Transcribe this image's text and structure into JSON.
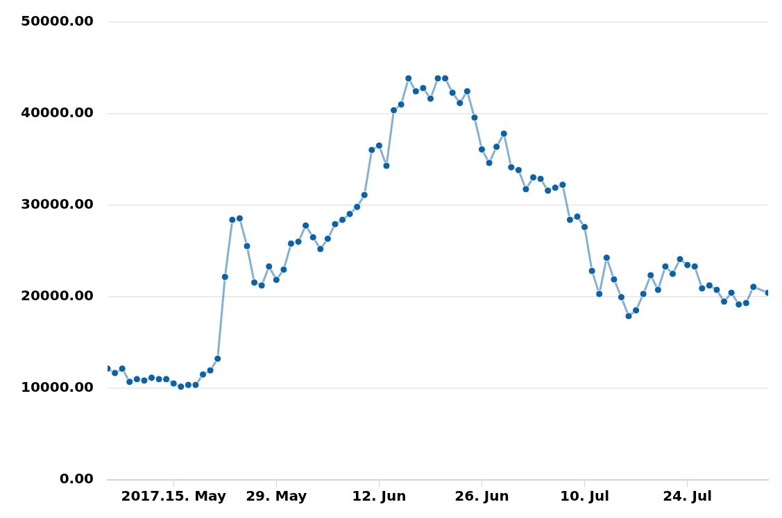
{
  "chart_data": {
    "type": "line",
    "x": [
      "2017-05-06",
      "2017-05-07",
      "2017-05-08",
      "2017-05-09",
      "2017-05-10",
      "2017-05-11",
      "2017-05-12",
      "2017-05-13",
      "2017-05-14",
      "2017-05-15",
      "2017-05-16",
      "2017-05-17",
      "2017-05-18",
      "2017-05-19",
      "2017-05-20",
      "2017-05-21",
      "2017-05-22",
      "2017-05-23",
      "2017-05-24",
      "2017-05-25",
      "2017-05-26",
      "2017-05-27",
      "2017-05-28",
      "2017-05-29",
      "2017-05-30",
      "2017-05-31",
      "2017-06-01",
      "2017-06-02",
      "2017-06-03",
      "2017-06-04",
      "2017-06-05",
      "2017-06-06",
      "2017-06-07",
      "2017-06-08",
      "2017-06-09",
      "2017-06-10",
      "2017-06-11",
      "2017-06-12",
      "2017-06-13",
      "2017-06-14",
      "2017-06-15",
      "2017-06-16",
      "2017-06-17",
      "2017-06-18",
      "2017-06-19",
      "2017-06-20",
      "2017-06-21",
      "2017-06-22",
      "2017-06-23",
      "2017-06-24",
      "2017-06-25",
      "2017-06-26",
      "2017-06-27",
      "2017-06-28",
      "2017-06-29",
      "2017-06-30",
      "2017-07-01",
      "2017-07-02",
      "2017-07-03",
      "2017-07-04",
      "2017-07-05",
      "2017-07-06",
      "2017-07-07",
      "2017-07-08",
      "2017-07-09",
      "2017-07-10",
      "2017-07-11",
      "2017-07-12",
      "2017-07-13",
      "2017-07-14",
      "2017-07-15",
      "2017-07-16",
      "2017-07-17",
      "2017-07-18",
      "2017-07-19",
      "2017-07-20",
      "2017-07-21",
      "2017-07-22",
      "2017-07-23",
      "2017-07-24",
      "2017-07-25",
      "2017-07-26",
      "2017-07-27",
      "2017-07-28",
      "2017-07-29",
      "2017-07-30",
      "2017-07-31",
      "2017-08-01",
      "2017-08-02",
      "2017-08-04"
    ],
    "series": [
      {
        "color": "#0b62a4",
        "values": [
          12150,
          11670,
          12150,
          10710,
          11000,
          10850,
          11160,
          11000,
          11000,
          10530,
          10180,
          10370,
          10370,
          11510,
          11960,
          13240,
          22170,
          28410,
          28570,
          25540,
          21560,
          21240,
          23310,
          21850,
          22970,
          25810,
          26020,
          27780,
          26500,
          25220,
          26340,
          27930,
          28410,
          29050,
          29820,
          31120,
          36040,
          36520,
          34310,
          40380,
          41010,
          43860,
          42450,
          42800,
          41650,
          43860,
          43860,
          42290,
          41170,
          42450,
          39580,
          36100,
          34630,
          36390,
          37820,
          34150,
          33840,
          31760,
          33040,
          32880,
          31600,
          31920,
          32240,
          28410,
          28760,
          27620,
          22830,
          20310,
          24270,
          21900,
          19960,
          17890,
          18520,
          20310,
          22350,
          20760,
          23310,
          22510,
          24110,
          23470,
          23310,
          20920,
          21240,
          20760,
          19480,
          20440,
          19160,
          19320,
          21080,
          20440
        ]
      }
    ],
    "xlim": [
      "2017-05-06",
      "2017-08-04"
    ],
    "xticks": [
      {
        "value": "2017-05-15",
        "label": "2017.15. May"
      },
      {
        "value": "2017-05-29",
        "label": "29. May"
      },
      {
        "value": "2017-06-12",
        "label": "12. Jun"
      },
      {
        "value": "2017-06-26",
        "label": "26. Jun"
      },
      {
        "value": "2017-07-10",
        "label": "10. Jul"
      },
      {
        "value": "2017-07-24",
        "label": "24. Jul"
      }
    ],
    "ylim": [
      0,
      50000
    ],
    "yticks": [
      {
        "value": 0,
        "label": "0.00"
      },
      {
        "value": 10000,
        "label": "10000.00"
      },
      {
        "value": 20000,
        "label": "20000.00"
      },
      {
        "value": 30000,
        "label": "30000.00"
      },
      {
        "value": 40000,
        "label": "40000.00"
      },
      {
        "value": 50000,
        "label": "50000.00"
      }
    ],
    "grid": "y",
    "marker": "circle",
    "line_style": "solid",
    "legend": false
  }
}
